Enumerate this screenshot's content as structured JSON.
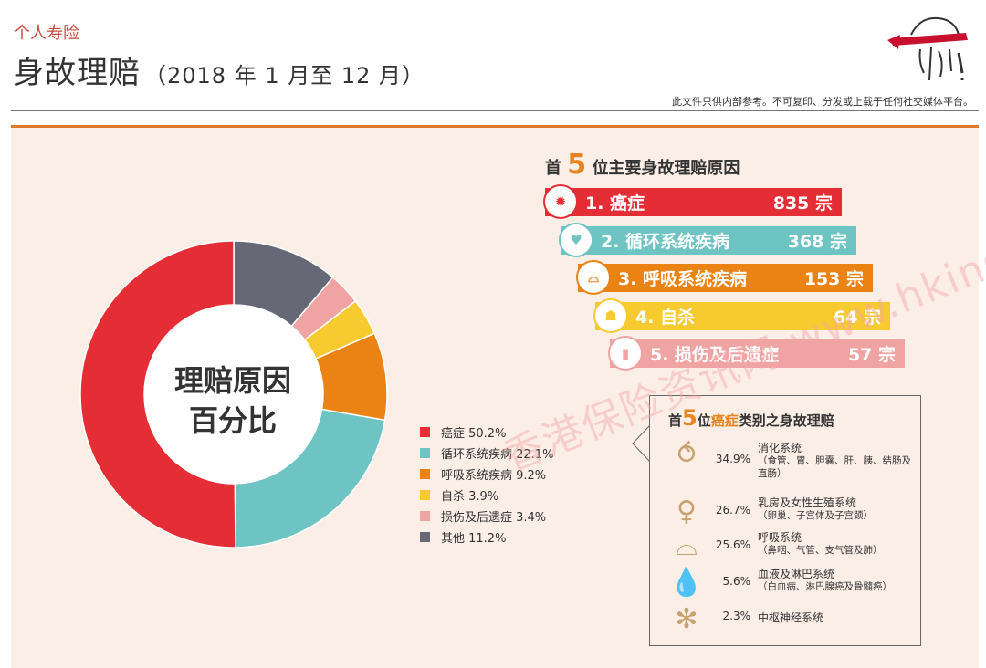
{
  "header": {
    "category": "个人寿险",
    "title": "身故理赔",
    "period": "（2018 年 1 月至 12 月）",
    "disclaimer": "此文件只供内部参考。不可复印、分发或上载于任何社交媒体平台。"
  },
  "colors": {
    "cancer": "#e42d35",
    "circulatory": "#6ec3c3",
    "respiratory": "#eb8214",
    "suicide": "#f7cb30",
    "injury": "#f0a3a3",
    "other": "#666876",
    "accent": "#e8841f"
  },
  "chart_data": [
    {
      "type": "pie",
      "center_label_line1": "理赔原因",
      "center_label_line2": "百分比",
      "categories": [
        "癌症",
        "循环系统疾病",
        "呼吸系统疾病",
        "自杀",
        "损伤及后遗症",
        "其他"
      ],
      "values": [
        50.2,
        22.1,
        9.2,
        3.9,
        3.4,
        11.2
      ],
      "legend_labels": [
        "癌症 50.2%",
        "循环系统疾病 22.1%",
        "呼吸系统疾病 9.2%",
        "自杀 3.9%",
        "损伤及后遗症 3.4%",
        "其他 11.2%"
      ],
      "colors": [
        "#e42d35",
        "#6ec3c3",
        "#eb8214",
        "#f7cb30",
        "#f0a3a3",
        "#666876"
      ],
      "legend_position": "right"
    },
    {
      "type": "bar",
      "title_prefix": "首",
      "title_number": "5",
      "title_suffix": "位主要身故理赔原因",
      "categories": [
        "1. 癌症",
        "2. 循环系统疾病",
        "3. 呼吸系统疾病",
        "4. 自杀",
        "5. 损伤及后遗症"
      ],
      "values": [
        835,
        368,
        153,
        64,
        57
      ],
      "value_labels": [
        "835 宗",
        "368 宗",
        "153 宗",
        "64 宗",
        "57 宗"
      ],
      "colors": [
        "#e42d35",
        "#6ec3c3",
        "#eb8214",
        "#f7cb30",
        "#f0a3a3"
      ]
    }
  ],
  "cancer_box": {
    "title_prefix": "首",
    "title_number": "5",
    "title_middle": "位",
    "title_highlight": "癌症",
    "title_suffix": "类别之身故理赔",
    "items": [
      {
        "pct": "34.9%",
        "name": "消化系统",
        "sub": "（食管、胃、胆囊、肝、胰、结肠及直肠）",
        "icon": "stomach-icon",
        "glyph": "⥀"
      },
      {
        "pct": "26.7%",
        "name": "乳房及女性生殖系统",
        "sub": "（卵巢、子宫体及子宫颈）",
        "icon": "uterus-icon",
        "glyph": "♀"
      },
      {
        "pct": "25.6%",
        "name": "呼吸系统",
        "sub": "（鼻咽、气管、支气管及肺）",
        "icon": "lungs-icon",
        "glyph": "⌓"
      },
      {
        "pct": "5.6%",
        "name": "血液及淋巴系统",
        "sub": "（白血病、淋巴腺癌及骨髓癌）",
        "icon": "blood-drop-icon",
        "glyph": "💧"
      },
      {
        "pct": "2.3%",
        "name": "中枢神经系统",
        "sub": "",
        "icon": "neuron-icon",
        "glyph": "✻"
      }
    ]
  },
  "watermark": "香港保险资讯网 www.hkinsu.com"
}
